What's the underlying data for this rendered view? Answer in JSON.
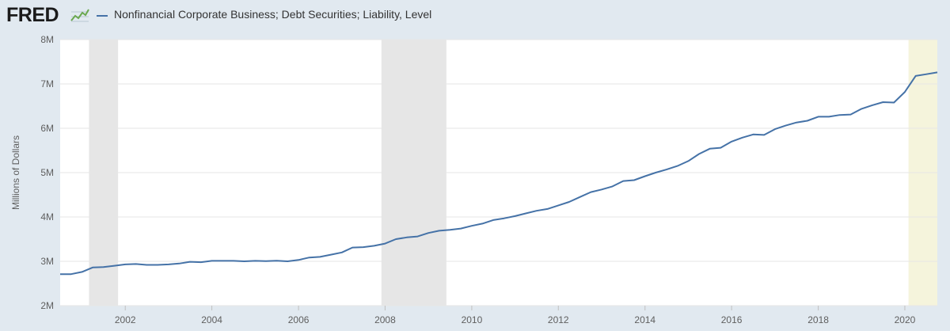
{
  "header": {
    "logo_text": "FRED",
    "logo_icon": "fred-trend-graph-icon"
  },
  "colors": {
    "series": "#4572a7",
    "recession": "#e6e6e6",
    "highlight": "#f5f4dc",
    "background": "#e1e9f0",
    "plot": "#ffffff",
    "gridline": "#e6e6e6"
  },
  "chart_data": {
    "type": "line",
    "title": "",
    "xlabel": "",
    "ylabel": "Millions of Dollars",
    "grid": "horizontal",
    "legend_placement": "top-left",
    "xlim": [
      "2000-07-01",
      "2020-10-01"
    ],
    "ylim": [
      2000000,
      8000000
    ],
    "xticks": [
      "2002",
      "2004",
      "2006",
      "2008",
      "2010",
      "2012",
      "2014",
      "2016",
      "2018",
      "2020"
    ],
    "yticks": [
      "2M",
      "3M",
      "4M",
      "5M",
      "6M",
      "7M",
      "8M"
    ],
    "recession_shading": [
      [
        "2001-03-01",
        "2001-11-01"
      ],
      [
        "2007-12-01",
        "2009-06-01"
      ]
    ],
    "highlight_shading": [
      [
        "2020-02-01",
        "2020-10-01"
      ]
    ],
    "series": [
      {
        "name": "Nonfinancial Corporate Business; Debt Securities; Liability, Level",
        "x": [
          "2000-07-01",
          "2000-10-01",
          "2001-01-01",
          "2001-04-01",
          "2001-07-01",
          "2001-10-01",
          "2002-01-01",
          "2002-04-01",
          "2002-07-01",
          "2002-10-01",
          "2003-01-01",
          "2003-04-01",
          "2003-07-01",
          "2003-10-01",
          "2004-01-01",
          "2004-04-01",
          "2004-07-01",
          "2004-10-01",
          "2005-01-01",
          "2005-04-01",
          "2005-07-01",
          "2005-10-01",
          "2006-01-01",
          "2006-04-01",
          "2006-07-01",
          "2006-10-01",
          "2007-01-01",
          "2007-04-01",
          "2007-07-01",
          "2007-10-01",
          "2008-01-01",
          "2008-04-01",
          "2008-07-01",
          "2008-10-01",
          "2009-01-01",
          "2009-04-01",
          "2009-07-01",
          "2009-10-01",
          "2010-01-01",
          "2010-04-01",
          "2010-07-01",
          "2010-10-01",
          "2011-01-01",
          "2011-04-01",
          "2011-07-01",
          "2011-10-01",
          "2012-01-01",
          "2012-04-01",
          "2012-07-01",
          "2012-10-01",
          "2013-01-01",
          "2013-04-01",
          "2013-07-01",
          "2013-10-01",
          "2014-01-01",
          "2014-04-01",
          "2014-07-01",
          "2014-10-01",
          "2015-01-01",
          "2015-04-01",
          "2015-07-01",
          "2015-10-01",
          "2016-01-01",
          "2016-04-01",
          "2016-07-01",
          "2016-10-01",
          "2017-01-01",
          "2017-04-01",
          "2017-07-01",
          "2017-10-01",
          "2018-01-01",
          "2018-04-01",
          "2018-07-01",
          "2018-10-01",
          "2019-01-01",
          "2019-04-01",
          "2019-07-01",
          "2019-10-01",
          "2020-01-01",
          "2020-04-01",
          "2020-07-01",
          "2020-10-01"
        ],
        "values": [
          2710000,
          2710000,
          2760000,
          2860000,
          2870000,
          2900000,
          2930000,
          2940000,
          2920000,
          2920000,
          2930000,
          2950000,
          2990000,
          2980000,
          3010000,
          3010000,
          3010000,
          3000000,
          3010000,
          3005000,
          3015000,
          3000000,
          3030000,
          3085000,
          3100000,
          3150000,
          3200000,
          3310000,
          3320000,
          3350000,
          3400000,
          3500000,
          3540000,
          3560000,
          3640000,
          3690000,
          3710000,
          3740000,
          3800000,
          3850000,
          3930000,
          3970000,
          4020000,
          4080000,
          4140000,
          4180000,
          4260000,
          4340000,
          4450000,
          4560000,
          4620000,
          4690000,
          4810000,
          4830000,
          4920000,
          5000000,
          5070000,
          5150000,
          5260000,
          5420000,
          5540000,
          5560000,
          5700000,
          5790000,
          5860000,
          5850000,
          5980000,
          6060000,
          6130000,
          6170000,
          6260000,
          6260000,
          6300000,
          6310000,
          6440000,
          6520000,
          6590000,
          6580000,
          6820000,
          7180000,
          7220000,
          7260000
        ]
      }
    ]
  }
}
